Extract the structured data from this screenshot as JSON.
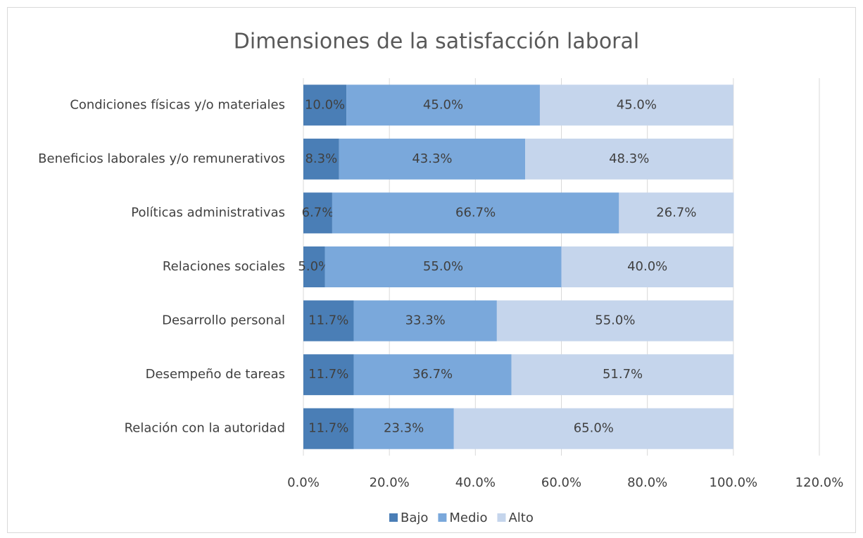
{
  "chart_data": {
    "type": "stacked-bar-horizontal",
    "title": "Dimensiones de la satisfacción laboral",
    "categories": [
      "Condiciones físicas y/o materiales",
      "Beneficios laborales y/o remunerativos",
      "Políticas administrativas",
      "Relaciones sociales",
      "Desarrollo personal",
      "Desempeño de tareas",
      "Relación con la autoridad"
    ],
    "series": [
      {
        "name": "Bajo",
        "color": "#4a7eb6",
        "values": [
          10.0,
          8.3,
          6.7,
          5.0,
          11.7,
          11.7,
          11.7
        ],
        "value_labels": [
          "10.0%",
          "8.3%",
          "6.7%",
          "5.0%",
          "11.7%",
          "11.7%",
          "11.7%"
        ]
      },
      {
        "name": "Medio",
        "color": "#7aa8db",
        "values": [
          45.0,
          43.3,
          66.7,
          55.0,
          33.3,
          36.7,
          23.3
        ],
        "value_labels": [
          "45.0%",
          "43.3%",
          "66.7%",
          "55.0%",
          "33.3%",
          "36.7%",
          "23.3%"
        ]
      },
      {
        "name": "Alto",
        "color": "#c5d5ec",
        "values": [
          45.0,
          48.3,
          26.7,
          40.0,
          55.0,
          51.7,
          65.0
        ],
        "value_labels": [
          "45.0%",
          "48.3%",
          "26.7%",
          "40.0%",
          "55.0%",
          "51.7%",
          "65.0%"
        ]
      }
    ],
    "xlim": [
      0,
      120
    ],
    "xticks": [
      {
        "value": 0,
        "label": "0.0%"
      },
      {
        "value": 20,
        "label": "20.0%"
      },
      {
        "value": 40,
        "label": "40.0%"
      },
      {
        "value": 60,
        "label": "60.0%"
      },
      {
        "value": 80,
        "label": "80.0%"
      },
      {
        "value": 100,
        "label": "100.0%"
      },
      {
        "value": 120,
        "label": "120.0%"
      }
    ],
    "grid": true,
    "legend": "bottom"
  }
}
